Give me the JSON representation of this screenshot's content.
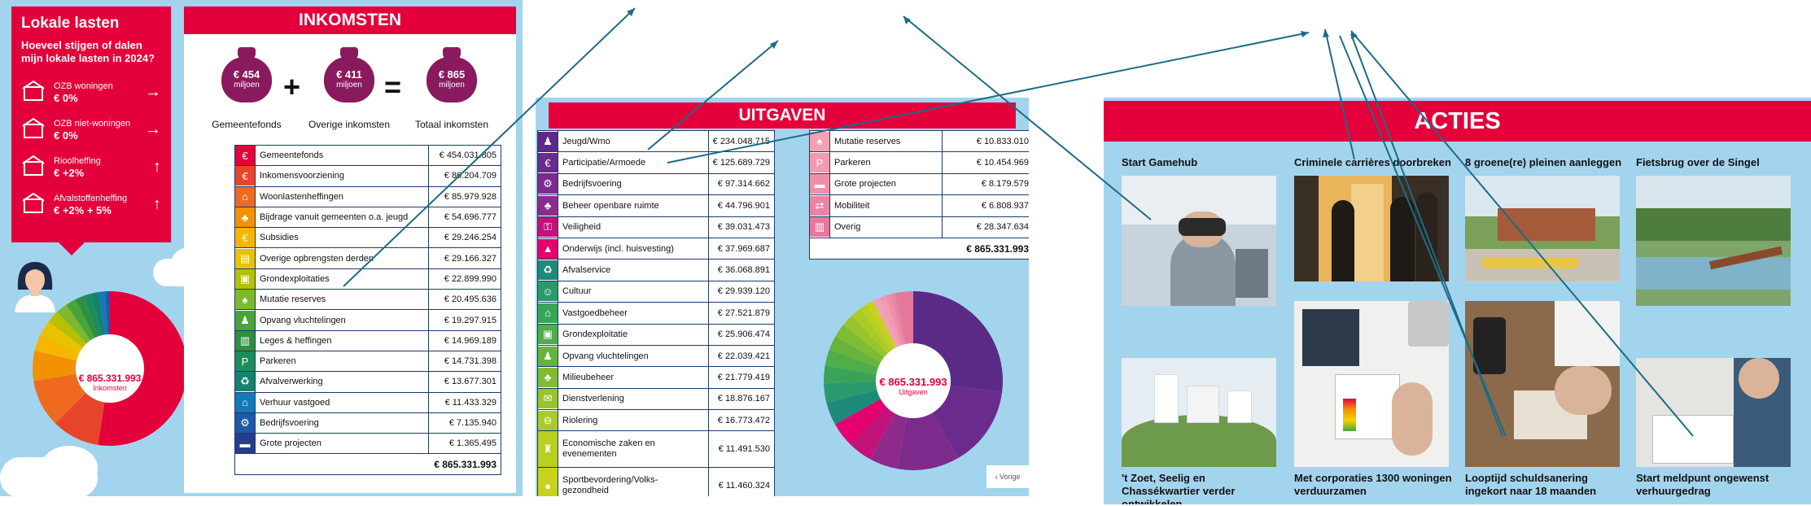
{
  "lasten": {
    "title": "Lokale lasten",
    "question": "Hoeveel stijgen of dalen mijn lokale lasten in 2024?",
    "items": [
      {
        "label": "OZB woningen",
        "value": "€ 0%",
        "arrow": "→",
        "icon": "house-icon"
      },
      {
        "label": "OZB niet-woningen",
        "value": "€ 0%",
        "arrow": "→",
        "icon": "buildings-icon"
      },
      {
        "label": "Rioolheffing",
        "value": "€ +2%",
        "arrow": "↑",
        "icon": "sewer-icon"
      },
      {
        "label": "Afvalstoffenheffing",
        "value": "€ +2% + 5%",
        "arrow": "↑",
        "icon": "garbage-truck-icon"
      }
    ]
  },
  "inkomsten": {
    "header": "INKOMSTEN",
    "bags": [
      {
        "amount": "€ 454",
        "unit": "miljoen",
        "label": "Gemeentefonds"
      },
      {
        "amount": "€ 411",
        "unit": "miljoen",
        "label": "Overige inkomsten"
      },
      {
        "amount": "€ 865",
        "unit": "miljoen",
        "label": "Totaal inkomsten"
      }
    ],
    "plus": "+",
    "equals": "=",
    "rows": [
      {
        "label": "Gemeentefonds",
        "value": "€ 454.031.805",
        "color": "#e4003a",
        "icon": "€"
      },
      {
        "label": "Inkomensvoorziening",
        "value": "€ 86.204.709",
        "color": "#e8442a",
        "icon": "€"
      },
      {
        "label": "Woonlastenheffingen",
        "value": "€ 85.979.928",
        "color": "#ef6a1f",
        "icon": "⌂"
      },
      {
        "label": "Bijdrage vanuit gemeenten o.a. jeugd",
        "value": "€ 54.696.777",
        "color": "#f39200",
        "icon": "♣"
      },
      {
        "label": "Subsidies",
        "value": "€ 29.246.254",
        "color": "#f7b500",
        "icon": "€"
      },
      {
        "label": "Overige opbrengsten derden",
        "value": "€ 29.166.327",
        "color": "#e9c200",
        "icon": "▤"
      },
      {
        "label": "Grondexploitaties",
        "value": "€ 22.899.990",
        "color": "#b5c100",
        "icon": "▣"
      },
      {
        "label": "Mutatie reserves",
        "value": "€ 20.495.636",
        "color": "#7eb82e",
        "icon": "♠"
      },
      {
        "label": "Opvang vluchtelingen",
        "value": "€ 19.297.915",
        "color": "#4aa339",
        "icon": "♟"
      },
      {
        "label": "Leges & heffingen",
        "value": "€ 14.969.189",
        "color": "#2f8f3e",
        "icon": "▥"
      },
      {
        "label": "Parkeren",
        "value": "€ 14.731.398",
        "color": "#1d8c5c",
        "icon": "P"
      },
      {
        "label": "Afvalverwerking",
        "value": "€ 13.677.301",
        "color": "#14826f",
        "icon": "♻"
      },
      {
        "label": "Verhuur vastgoed",
        "value": "€ 11.433.329",
        "color": "#1479b8",
        "icon": "⌂"
      },
      {
        "label": "Bedrijfsvoering",
        "value": "€ 7.135.940",
        "color": "#1f5aa8",
        "icon": "⚙"
      },
      {
        "label": "Grote projecten",
        "value": "€ 1.365.495",
        "color": "#243d8f",
        "icon": "▬"
      }
    ],
    "total": "€ 865.331.993"
  },
  "inkomsten_donut": {
    "total": "€ 865.331.993",
    "label": "Inkomsten"
  },
  "uitgaven": {
    "header": "UITGAVEN",
    "rows_left": [
      {
        "label": "Jeugd/Wmo",
        "value": "€ 234.048.715",
        "color": "#5b2a86",
        "icon": "♟"
      },
      {
        "label": "Participatie/Armoede",
        "value": "€ 125.689.729",
        "color": "#6b2b8c",
        "icon": "€"
      },
      {
        "label": "Bedrijfsvoering",
        "value": "€ 97.314.662",
        "color": "#7d2a8d",
        "icon": "⚙"
      },
      {
        "label": "Beheer openbare ruimte",
        "value": "€ 44.796.901",
        "color": "#8e2a8c",
        "icon": "♣"
      },
      {
        "label": "Veiligheid",
        "value": "€ 39.031.473",
        "color": "#c4127b",
        "icon": "⚿"
      },
      {
        "label": "Onderwijs (incl. huisvesting)",
        "value": "€ 37.969.687",
        "color": "#e4006f",
        "icon": "▲"
      },
      {
        "label": "Afvalservice",
        "value": "€ 36.068.891",
        "color": "#1e8a7a",
        "icon": "♻"
      },
      {
        "label": "Cultuur",
        "value": "€ 29.939.120",
        "color": "#2a9a6c",
        "icon": "☺"
      },
      {
        "label": "Vastgoedbeheer",
        "value": "€ 27.521.879",
        "color": "#3aa35a",
        "icon": "⌂"
      },
      {
        "label": "Grondexploitatie",
        "value": "€ 25.906.474",
        "color": "#4fad4a",
        "icon": "▣"
      },
      {
        "label": "Opvang vluchtelingen",
        "value": "€ 22.039.421",
        "color": "#66b43c",
        "icon": "♟"
      },
      {
        "label": "Milieubeheer",
        "value": "€ 21.779.419",
        "color": "#80bc33",
        "icon": "♣"
      },
      {
        "label": "Dienstverlening",
        "value": "€ 18.876.167",
        "color": "#98c42c",
        "icon": "✉"
      },
      {
        "label": "Riolering",
        "value": "€ 16.773.472",
        "color": "#aacb26",
        "icon": "⊖"
      },
      {
        "label": "Economische zaken en evenementen",
        "value": "€ 11.491.530",
        "color": "#b9cf21",
        "icon": "♜",
        "two_line": true
      },
      {
        "label": "Sportbevordering/Volks-gezondheid",
        "value": "€ 11.460.324",
        "color": "#c6d21c",
        "icon": "●",
        "two_line": true
      }
    ],
    "rows_right": [
      {
        "label": "Mutatie reserves",
        "value": "€ 10.833.010",
        "color": "#f4a2b2",
        "icon": "♠"
      },
      {
        "label": "Parkeren",
        "value": "€ 10.454.969",
        "color": "#f29bb0",
        "icon": "P"
      },
      {
        "label": "Grote projecten",
        "value": "€ 8.179.579",
        "color": "#ee8fa8",
        "icon": "▬"
      },
      {
        "label": "Mobiliteit",
        "value": "€ 6.808.937",
        "color": "#ea84a2",
        "icon": "⇄"
      },
      {
        "label": "Overig",
        "value": "€ 28.347.634",
        "color": "#e6789c",
        "icon": "▥"
      }
    ],
    "total": "€ 865.331.993"
  },
  "uitgaven_donut": {
    "total": "€ 865.331.993",
    "label": "Uitgaven"
  },
  "nav": {
    "prev_label": "Vorige"
  },
  "acties": {
    "header": "ACTIES",
    "items": [
      {
        "title": "Start Gamehub"
      },
      {
        "title": "Criminele carrières doorbreken"
      },
      {
        "title": "8 groene(re) pleinen aanleggen"
      },
      {
        "title": "Fietsbrug over de Singel"
      },
      {
        "title": "'t Zoet, Seelig en Chassékwartier verder ontwikkelen"
      },
      {
        "title": "Met corporaties 1300 woningen verduurzamen"
      },
      {
        "title": "Looptijd schuldsanering ingekort naar 18 maanden"
      },
      {
        "title": "Start meldpunt ongewenst verhuurgedrag"
      }
    ]
  }
}
